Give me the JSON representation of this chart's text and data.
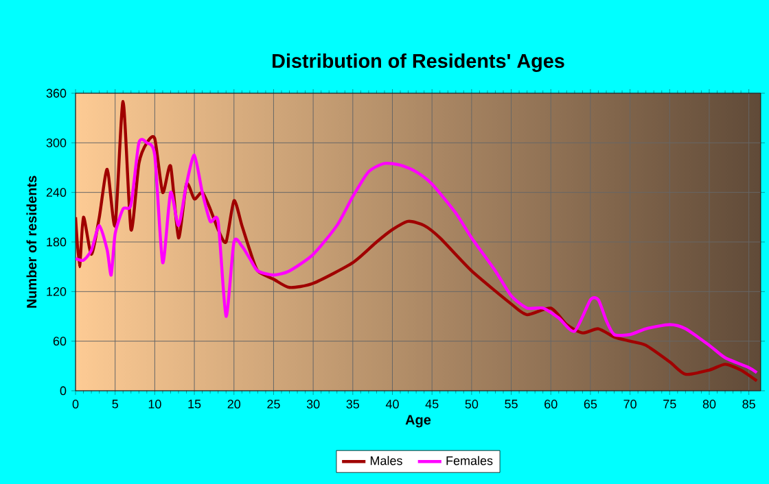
{
  "chart_data": {
    "type": "line",
    "title": "Distribution of Residents' Ages",
    "xlabel": "Age",
    "ylabel": "Number of residents",
    "xlim": [
      0,
      86.5
    ],
    "xticks": [
      0,
      5,
      10,
      15,
      20,
      25,
      30,
      35,
      40,
      45,
      50,
      55,
      60,
      65,
      70,
      75,
      80,
      85
    ],
    "ylim": [
      0,
      360
    ],
    "yticks": [
      0,
      60,
      120,
      180,
      240,
      300,
      360
    ],
    "grid": true,
    "legend": "bottom",
    "line_style": "solid",
    "marker": "none",
    "series": [
      {
        "name": "Males",
        "color": "#a00000",
        "x": [
          0,
          0.5,
          1,
          2,
          3,
          4,
          5,
          6,
          7,
          8,
          9,
          10,
          11,
          12,
          13,
          14,
          15,
          16,
          17,
          18,
          19,
          20,
          21,
          22,
          23,
          25,
          27,
          30,
          35,
          38,
          40,
          42,
          44,
          46,
          50,
          55,
          57,
          60,
          62,
          64,
          66,
          68,
          70,
          72,
          75,
          77,
          80,
          82,
          84,
          86
        ],
        "values": [
          210,
          150,
          210,
          165,
          210,
          268,
          200,
          350,
          195,
          275,
          300,
          305,
          240,
          272,
          185,
          250,
          232,
          240,
          220,
          195,
          180,
          230,
          200,
          170,
          145,
          135,
          125,
          130,
          155,
          180,
          195,
          205,
          200,
          185,
          145,
          105,
          92,
          100,
          80,
          70,
          75,
          65,
          60,
          55,
          35,
          20,
          25,
          32,
          25,
          12
        ]
      },
      {
        "name": "Females",
        "color": "#ff00ff",
        "x": [
          0,
          1,
          2,
          3,
          4,
          4.5,
          5,
          6,
          7,
          8,
          9,
          10,
          11,
          12,
          13,
          14,
          15,
          16,
          17,
          18,
          19,
          20,
          21,
          22,
          23,
          25,
          27,
          30,
          33,
          35,
          37,
          39,
          41,
          43,
          45,
          48,
          50,
          53,
          55,
          57,
          59,
          61,
          63,
          65,
          66,
          67,
          68,
          70,
          72,
          75,
          77,
          80,
          82,
          85,
          86
        ],
        "values": [
          160,
          158,
          170,
          200,
          170,
          140,
          190,
          220,
          225,
          300,
          300,
          285,
          155,
          240,
          200,
          250,
          285,
          240,
          205,
          205,
          90,
          180,
          175,
          160,
          145,
          140,
          145,
          165,
          200,
          235,
          265,
          275,
          273,
          265,
          250,
          215,
          185,
          145,
          115,
          100,
          100,
          88,
          72,
          110,
          110,
          85,
          68,
          68,
          75,
          80,
          75,
          55,
          40,
          28,
          22
        ]
      }
    ]
  }
}
